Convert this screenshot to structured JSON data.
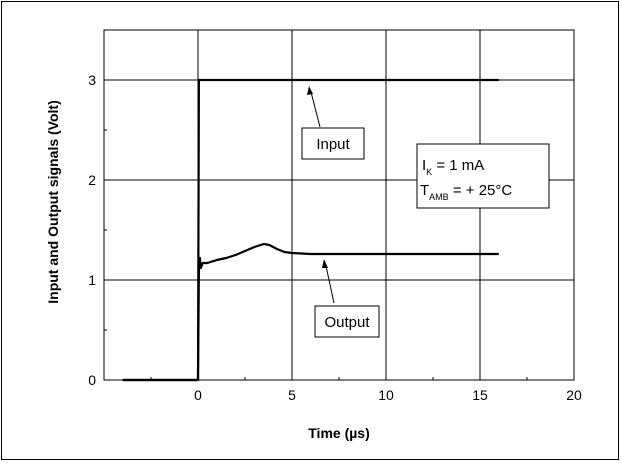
{
  "chart_data": {
    "type": "line",
    "title": "",
    "xlabel": "Time (µs)",
    "ylabel": "Input and Output signals (Volt)",
    "xlim": [
      -5,
      20
    ],
    "ylim": [
      0,
      3.5
    ],
    "xticks": [
      0,
      5,
      10,
      15,
      20
    ],
    "yticks": [
      0,
      1,
      2,
      3
    ],
    "grid": true,
    "series": [
      {
        "name": "Input",
        "color": "#000000",
        "x": [
          -4,
          0,
          0.05,
          16
        ],
        "y": [
          0,
          0,
          3,
          3
        ]
      },
      {
        "name": "Output",
        "color": "#000000",
        "x": [
          -4,
          0,
          0.05,
          0.1,
          0.15,
          0.25,
          0.5,
          1,
          1.5,
          2,
          2.5,
          3,
          3.5,
          3.8,
          4.2,
          4.6,
          5,
          6,
          8,
          10,
          12,
          14,
          16
        ],
        "y": [
          0,
          0,
          1.1,
          1.22,
          1.12,
          1.17,
          1.17,
          1.2,
          1.22,
          1.25,
          1.29,
          1.33,
          1.36,
          1.35,
          1.31,
          1.28,
          1.27,
          1.26,
          1.26,
          1.26,
          1.26,
          1.26,
          1.26
        ]
      }
    ],
    "annotations": {
      "input_label": "Input",
      "output_label": "Output",
      "ik_main": "I",
      "ik_sub": "K",
      "ik_value": " = 1 mA",
      "tamb_main": "T",
      "tamb_sub": "AMB",
      "tamb_value": " = + 25°C"
    },
    "ytick_labels": [
      "0",
      "1",
      "2",
      "3"
    ],
    "xtick_labels": [
      "0",
      "5",
      "10",
      "15",
      "20"
    ]
  }
}
